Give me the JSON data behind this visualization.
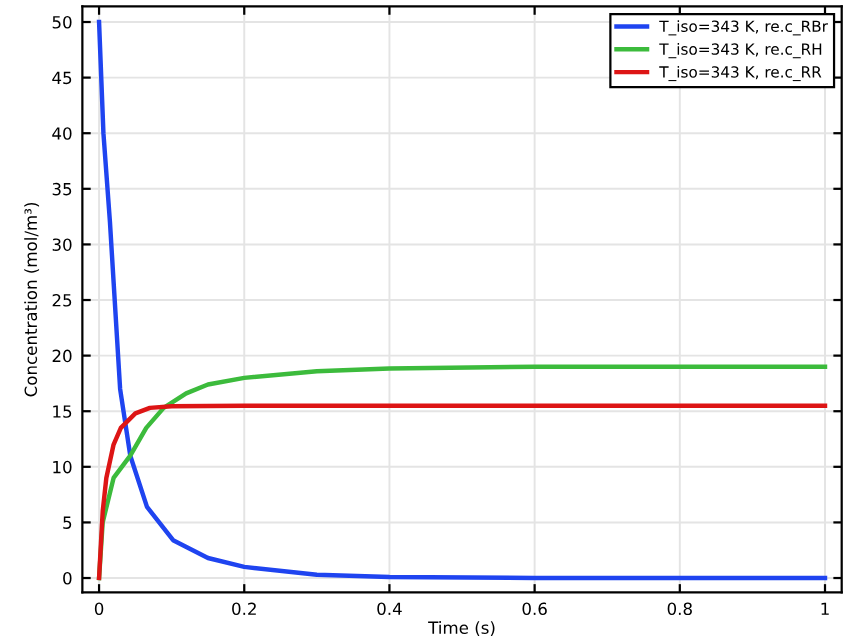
{
  "chart_data": {
    "type": "line",
    "xlabel": "Time (s)",
    "ylabel": "Concentration (mol/m³)",
    "xlim": [
      -0.023,
      1.023
    ],
    "ylim": [
      -1.3,
      51.4
    ],
    "xticks": [
      0,
      0.2,
      0.4,
      0.6,
      0.8,
      1
    ],
    "yticks": [
      0,
      5,
      10,
      15,
      20,
      25,
      30,
      35,
      40,
      45,
      50
    ],
    "grid": true,
    "legend": "top right",
    "line_style": "solid",
    "marker": "none",
    "series": [
      {
        "name": "T_iso=343 K, re.c_RBr",
        "color": "#1f44f0",
        "x": [
          0,
          0.006,
          0.015,
          0.029,
          0.043,
          0.066,
          0.102,
          0.15,
          0.2,
          0.3,
          0.4,
          0.6,
          1
        ],
        "values": [
          50,
          40,
          32,
          17,
          11,
          6.4,
          3.4,
          1.8,
          1.0,
          0.3,
          0.1,
          0,
          0
        ]
      },
      {
        "name": "T_iso=343 K, re.c_RH",
        "color": "#3cbb3c",
        "x": [
          0,
          0.005,
          0.02,
          0.043,
          0.065,
          0.089,
          0.12,
          0.15,
          0.2,
          0.3,
          0.4,
          0.6,
          1
        ],
        "values": [
          0,
          5,
          9,
          11,
          13.5,
          15.3,
          16.6,
          17.4,
          18.0,
          18.6,
          18.85,
          19.0,
          19.0
        ]
      },
      {
        "name": "T_iso=343 K, re.c_RR",
        "color": "#dd1515",
        "x": [
          0,
          0.005,
          0.01,
          0.02,
          0.03,
          0.05,
          0.07,
          0.1,
          0.2,
          1
        ],
        "values": [
          0,
          6,
          9,
          12,
          13.5,
          14.8,
          15.3,
          15.45,
          15.5,
          15.5
        ]
      }
    ]
  }
}
